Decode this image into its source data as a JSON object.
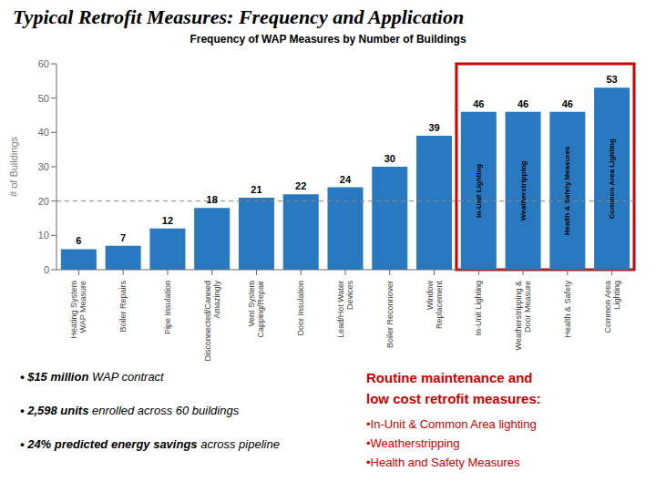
{
  "chart_data": {
    "type": "bar",
    "title": "Typical Retrofit Measures: Frequency and Application",
    "subtitle": "Frequency of WAP Measures by Number of Buildings",
    "ylabel": "# of Buildings",
    "categories": [
      "Heating System\nWAP Measure",
      "Boiler Repairs",
      "Pipe Insulation",
      "Disconnected/Canned\nAmazingly",
      "Vent System\nCapping/Repair",
      "Door Insulation",
      "Lead/Hot Water\nDevices",
      "Boiler Reconnover",
      "Window\nReplacement",
      "In-Unit Lighting",
      "Weatherstripping &\nDoor Measure",
      "Health & Safety",
      "Common Area\nLighting"
    ],
    "values": [
      6,
      7,
      12,
      18,
      21,
      22,
      24,
      30,
      39,
      46,
      46,
      46,
      53
    ],
    "color": "#2979C0",
    "ylim": [
      0,
      60
    ],
    "yticks": [
      0,
      10,
      20,
      30,
      40,
      50,
      60
    ],
    "grid": false,
    "data_labels": true,
    "inner_labels": [
      null,
      null,
      null,
      null,
      null,
      null,
      null,
      null,
      null,
      "In-Unit Lighting",
      "Weatherstripping",
      "Health & Safety Measures",
      "Common Area Lighting"
    ],
    "reference_line": 20,
    "highlight_color": "#CC0000",
    "notes": [
      [
        "• $15 million",
        " WAP contract"
      ],
      [
        "• 2,598 units",
        " enrolled across 60 buildings"
      ],
      [
        "• 24% predicted energy savings",
        " across pipeline"
      ]
    ],
    "side_note": {
      "header": [
        "Routine maintenance and",
        "low cost retrofit measures:"
      ],
      "items": [
        "•In-Unit & Common Area lighting",
        "•Weatherstripping",
        "•Health and Safety Measures"
      ]
    }
  }
}
